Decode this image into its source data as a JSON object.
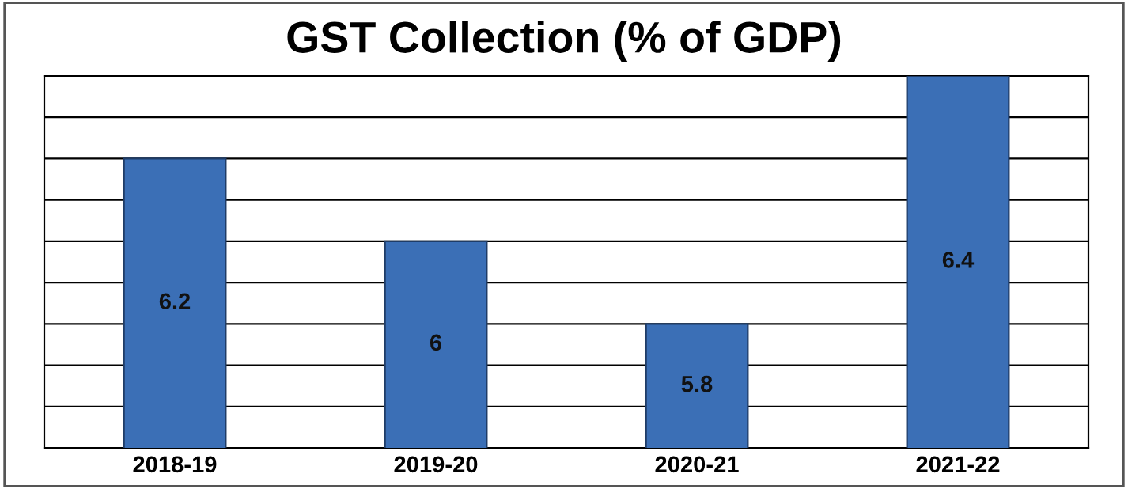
{
  "chart_data": {
    "type": "bar",
    "title": "GST Collection (% of GDP)",
    "categories": [
      "2018-19",
      "2019-20",
      "2020-21",
      "2021-22"
    ],
    "values": [
      6.2,
      6,
      5.8,
      6.4
    ],
    "color": "#3b6fb6",
    "data_labels": true,
    "ylim": [
      5.5,
      6.4
    ],
    "yticks": [
      {
        "value": 5.6,
        "label": null
      },
      {
        "value": 5.7,
        "label": null
      },
      {
        "value": 5.8,
        "label": null
      },
      {
        "value": 5.9,
        "label": null
      },
      {
        "value": 6.0,
        "label": null
      },
      {
        "value": 6.1,
        "label": null
      },
      {
        "value": 6.2,
        "label": null
      },
      {
        "value": 6.3,
        "label": null
      }
    ],
    "tick_labels": "x",
    "grid": "y"
  }
}
